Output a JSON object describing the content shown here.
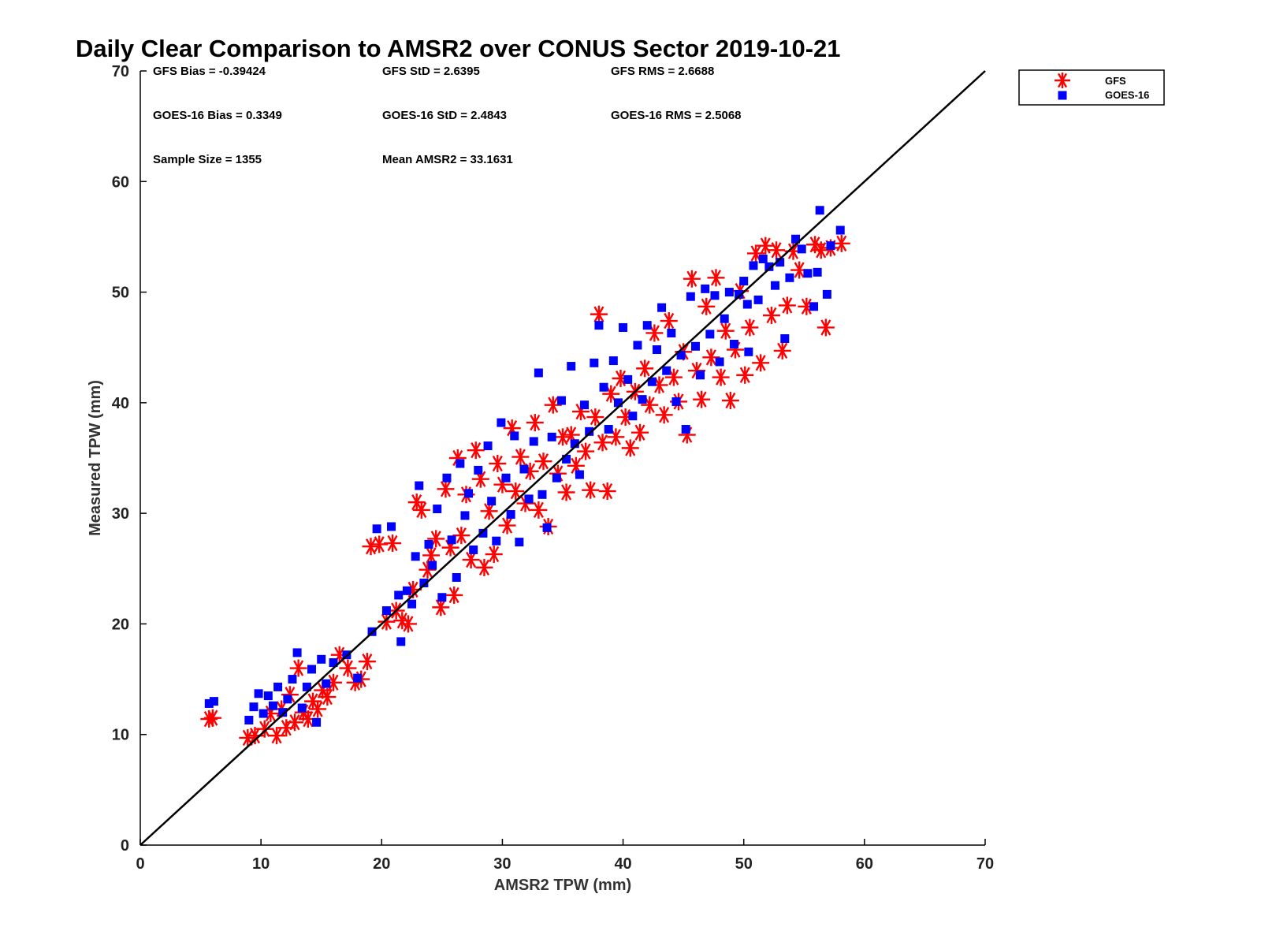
{
  "chart_data": {
    "type": "scatter",
    "title": "Daily Clear Comparison to AMSR2 over CONUS Sector 2019-10-21",
    "xlabel": "AMSR2 TPW (mm)",
    "ylabel": "Measured TPW (mm)",
    "xlim": [
      0,
      70
    ],
    "ylim": [
      0,
      70
    ],
    "xticks": [
      0,
      10,
      20,
      30,
      40,
      50,
      60,
      70
    ],
    "yticks": [
      0,
      10,
      20,
      30,
      40,
      50,
      60,
      70
    ],
    "grid": false,
    "legend_position": "outside-top-right",
    "reference_line": {
      "from": [
        0,
        0
      ],
      "to": [
        70,
        70
      ],
      "color": "#000000"
    },
    "stats": [
      {
        "key": "gfs_bias",
        "text": "GFS Bias = -0.39424"
      },
      {
        "key": "gfs_std",
        "text": "GFS StD = 2.6395"
      },
      {
        "key": "gfs_rms",
        "text": "GFS RMS = 2.6688"
      },
      {
        "key": "goes_bias",
        "text": "GOES-16 Bias = 0.3349"
      },
      {
        "key": "goes_std",
        "text": "GOES-16 StD = 2.4843"
      },
      {
        "key": "goes_rms",
        "text": "GOES-16 RMS = 2.5068"
      },
      {
        "key": "sample_size",
        "text": "Sample Size = 1355"
      },
      {
        "key": "mean_amsr2",
        "text": "Mean AMSR2 = 33.1631"
      }
    ],
    "series": [
      {
        "name": "GFS",
        "marker": "asterisk",
        "color": "#ff0000",
        "points": [
          [
            5.7,
            11.4
          ],
          [
            6.0,
            11.5
          ],
          [
            8.9,
            9.7
          ],
          [
            9.5,
            9.9
          ],
          [
            10.3,
            10.5
          ],
          [
            10.8,
            11.9
          ],
          [
            11.3,
            9.9
          ],
          [
            11.7,
            12.3
          ],
          [
            12.1,
            10.6
          ],
          [
            12.4,
            13.6
          ],
          [
            12.8,
            11.1
          ],
          [
            13.1,
            16.0
          ],
          [
            13.5,
            12.0
          ],
          [
            13.9,
            11.4
          ],
          [
            14.3,
            13.0
          ],
          [
            14.7,
            12.3
          ],
          [
            15.1,
            14.0
          ],
          [
            15.5,
            13.4
          ],
          [
            16.0,
            14.7
          ],
          [
            16.5,
            17.2
          ],
          [
            17.2,
            16.0
          ],
          [
            17.8,
            14.7
          ],
          [
            18.3,
            15.0
          ],
          [
            18.8,
            16.6
          ],
          [
            19.1,
            27.0
          ],
          [
            19.8,
            27.2
          ],
          [
            20.4,
            20.2
          ],
          [
            20.9,
            27.3
          ],
          [
            21.2,
            21.2
          ],
          [
            21.7,
            20.3
          ],
          [
            22.2,
            20.0
          ],
          [
            22.6,
            23.1
          ],
          [
            22.9,
            31.0
          ],
          [
            23.3,
            30.3
          ],
          [
            23.8,
            24.9
          ],
          [
            24.1,
            26.2
          ],
          [
            24.5,
            27.7
          ],
          [
            24.9,
            21.5
          ],
          [
            25.3,
            32.2
          ],
          [
            25.7,
            26.9
          ],
          [
            26.0,
            22.6
          ],
          [
            26.3,
            35.0
          ],
          [
            26.6,
            28.0
          ],
          [
            27.0,
            31.7
          ],
          [
            27.4,
            25.8
          ],
          [
            27.8,
            35.7
          ],
          [
            28.2,
            33.1
          ],
          [
            28.5,
            25.1
          ],
          [
            28.9,
            30.2
          ],
          [
            29.3,
            26.3
          ],
          [
            29.6,
            34.5
          ],
          [
            30.0,
            32.6
          ],
          [
            30.4,
            28.9
          ],
          [
            30.8,
            37.7
          ],
          [
            31.1,
            32.0
          ],
          [
            31.5,
            35.1
          ],
          [
            31.9,
            30.9
          ],
          [
            32.3,
            33.8
          ],
          [
            32.7,
            38.2
          ],
          [
            33.0,
            30.3
          ],
          [
            33.4,
            34.7
          ],
          [
            33.8,
            28.8
          ],
          [
            34.2,
            39.8
          ],
          [
            34.6,
            33.6
          ],
          [
            35.0,
            36.9
          ],
          [
            35.3,
            31.9
          ],
          [
            35.7,
            37.1
          ],
          [
            36.1,
            34.3
          ],
          [
            36.5,
            39.2
          ],
          [
            36.9,
            35.6
          ],
          [
            37.3,
            32.1
          ],
          [
            37.7,
            38.7
          ],
          [
            38.0,
            48.0
          ],
          [
            38.3,
            36.4
          ],
          [
            38.7,
            32.0
          ],
          [
            39.0,
            40.8
          ],
          [
            39.4,
            36.9
          ],
          [
            39.8,
            42.2
          ],
          [
            40.2,
            38.7
          ],
          [
            40.6,
            35.9
          ],
          [
            41.0,
            41.0
          ],
          [
            41.4,
            37.3
          ],
          [
            41.8,
            43.1
          ],
          [
            42.2,
            39.8
          ],
          [
            42.6,
            46.3
          ],
          [
            43.0,
            41.6
          ],
          [
            43.4,
            38.9
          ],
          [
            43.8,
            47.4
          ],
          [
            44.2,
            42.3
          ],
          [
            44.6,
            40.1
          ],
          [
            45.0,
            44.6
          ],
          [
            45.3,
            37.1
          ],
          [
            45.7,
            51.2
          ],
          [
            46.1,
            42.9
          ],
          [
            46.5,
            40.3
          ],
          [
            46.9,
            48.7
          ],
          [
            47.3,
            44.1
          ],
          [
            47.7,
            51.3
          ],
          [
            48.1,
            42.3
          ],
          [
            48.5,
            46.5
          ],
          [
            48.9,
            40.2
          ],
          [
            49.3,
            44.8
          ],
          [
            49.7,
            50.1
          ],
          [
            50.1,
            42.5
          ],
          [
            50.5,
            46.8
          ],
          [
            51.0,
            53.5
          ],
          [
            51.4,
            43.6
          ],
          [
            51.8,
            54.2
          ],
          [
            52.3,
            47.9
          ],
          [
            52.7,
            53.8
          ],
          [
            53.2,
            44.7
          ],
          [
            53.6,
            48.8
          ],
          [
            54.1,
            53.7
          ],
          [
            54.6,
            52.0
          ],
          [
            55.2,
            48.7
          ],
          [
            55.9,
            54.3
          ],
          [
            56.4,
            53.8
          ],
          [
            56.8,
            46.8
          ],
          [
            57.2,
            54.0
          ],
          [
            58.1,
            54.4
          ]
        ]
      },
      {
        "name": "GOES-16",
        "marker": "square",
        "color": "#0000ff",
        "points": [
          [
            5.7,
            12.8
          ],
          [
            6.1,
            13.0
          ],
          [
            9.0,
            11.3
          ],
          [
            9.4,
            12.5
          ],
          [
            9.8,
            13.7
          ],
          [
            10.2,
            11.9
          ],
          [
            10.6,
            13.5
          ],
          [
            11.0,
            12.6
          ],
          [
            11.4,
            14.3
          ],
          [
            11.8,
            12.0
          ],
          [
            12.2,
            13.2
          ],
          [
            12.6,
            15.0
          ],
          [
            13.0,
            17.4
          ],
          [
            13.4,
            12.4
          ],
          [
            13.8,
            14.3
          ],
          [
            14.2,
            15.9
          ],
          [
            14.6,
            11.1
          ],
          [
            15.0,
            16.8
          ],
          [
            15.4,
            14.6
          ],
          [
            16.0,
            16.5
          ],
          [
            17.1,
            17.2
          ],
          [
            18.0,
            15.1
          ],
          [
            19.2,
            19.3
          ],
          [
            19.6,
            28.6
          ],
          [
            20.4,
            21.2
          ],
          [
            20.8,
            28.8
          ],
          [
            21.4,
            22.6
          ],
          [
            21.6,
            18.4
          ],
          [
            22.1,
            23.0
          ],
          [
            22.5,
            21.8
          ],
          [
            22.8,
            26.1
          ],
          [
            23.1,
            32.5
          ],
          [
            23.5,
            23.7
          ],
          [
            23.9,
            27.2
          ],
          [
            24.2,
            25.3
          ],
          [
            24.6,
            30.4
          ],
          [
            25.0,
            22.4
          ],
          [
            25.4,
            33.2
          ],
          [
            25.8,
            27.6
          ],
          [
            26.2,
            24.2
          ],
          [
            26.5,
            34.5
          ],
          [
            26.9,
            29.8
          ],
          [
            27.2,
            31.8
          ],
          [
            27.6,
            26.7
          ],
          [
            28.0,
            33.9
          ],
          [
            28.4,
            28.2
          ],
          [
            28.8,
            36.1
          ],
          [
            29.1,
            31.1
          ],
          [
            29.5,
            27.5
          ],
          [
            29.9,
            38.2
          ],
          [
            30.3,
            33.2
          ],
          [
            30.7,
            29.9
          ],
          [
            31.0,
            37.0
          ],
          [
            31.4,
            27.4
          ],
          [
            31.8,
            34.0
          ],
          [
            32.2,
            31.3
          ],
          [
            32.6,
            36.5
          ],
          [
            33.0,
            42.7
          ],
          [
            33.3,
            31.7
          ],
          [
            33.7,
            28.7
          ],
          [
            34.1,
            36.9
          ],
          [
            34.5,
            33.2
          ],
          [
            34.9,
            40.2
          ],
          [
            35.3,
            34.9
          ],
          [
            35.7,
            43.3
          ],
          [
            36.0,
            36.3
          ],
          [
            36.4,
            33.5
          ],
          [
            36.8,
            39.8
          ],
          [
            37.2,
            37.4
          ],
          [
            37.6,
            43.6
          ],
          [
            38.0,
            47.0
          ],
          [
            38.4,
            41.4
          ],
          [
            38.8,
            37.6
          ],
          [
            39.2,
            43.8
          ],
          [
            39.6,
            40.0
          ],
          [
            40.0,
            46.8
          ],
          [
            40.4,
            42.1
          ],
          [
            40.8,
            38.8
          ],
          [
            41.2,
            45.2
          ],
          [
            41.6,
            40.3
          ],
          [
            42.0,
            47.0
          ],
          [
            42.4,
            41.9
          ],
          [
            42.8,
            44.8
          ],
          [
            43.2,
            48.6
          ],
          [
            43.6,
            42.9
          ],
          [
            44.0,
            46.3
          ],
          [
            44.4,
            40.1
          ],
          [
            44.8,
            44.3
          ],
          [
            45.2,
            37.6
          ],
          [
            45.6,
            49.6
          ],
          [
            46.0,
            45.1
          ],
          [
            46.4,
            42.5
          ],
          [
            46.8,
            50.3
          ],
          [
            47.2,
            46.2
          ],
          [
            47.6,
            49.7
          ],
          [
            48.0,
            43.7
          ],
          [
            48.4,
            47.6
          ],
          [
            48.8,
            50.0
          ],
          [
            49.2,
            45.3
          ],
          [
            49.6,
            49.8
          ],
          [
            50.0,
            51.0
          ],
          [
            50.4,
            44.6
          ],
          [
            50.8,
            52.4
          ],
          [
            51.2,
            49.3
          ],
          [
            51.6,
            53.0
          ],
          [
            52.1,
            52.3
          ],
          [
            52.6,
            50.6
          ],
          [
            53.0,
            52.7
          ],
          [
            53.4,
            45.8
          ],
          [
            53.8,
            51.3
          ],
          [
            54.3,
            54.8
          ],
          [
            54.8,
            53.9
          ],
          [
            55.3,
            51.7
          ],
          [
            55.8,
            48.7
          ],
          [
            56.1,
            51.8
          ],
          [
            56.3,
            57.4
          ],
          [
            56.9,
            49.8
          ],
          [
            57.2,
            54.2
          ],
          [
            58.0,
            55.6
          ],
          [
            50.3,
            48.9
          ]
        ]
      }
    ]
  }
}
